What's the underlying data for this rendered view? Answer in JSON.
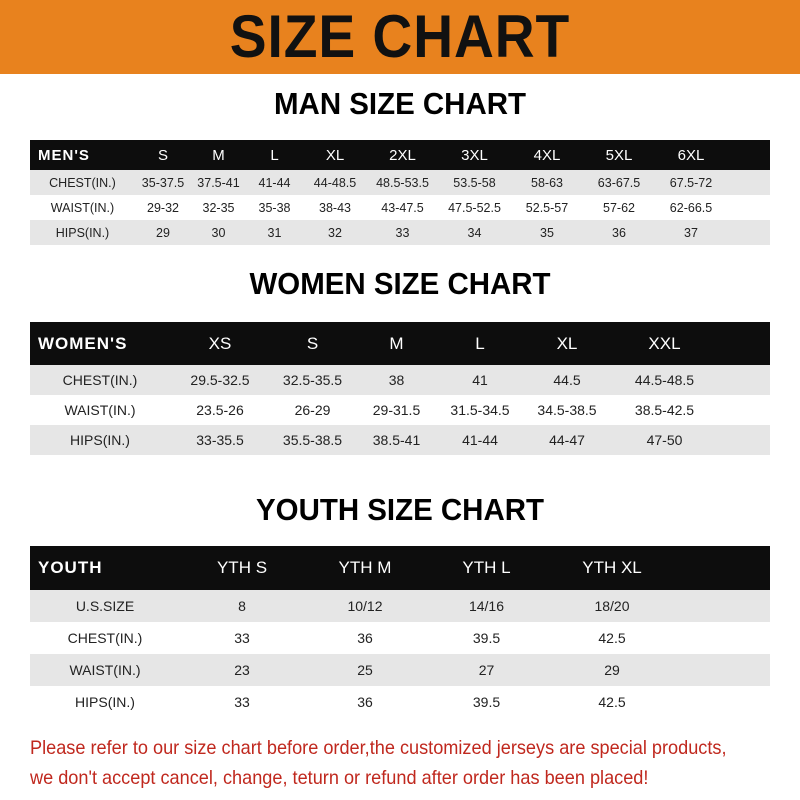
{
  "title": "SIZE CHART",
  "men": {
    "title": "MAN SIZE CHART",
    "header": [
      "MEN'S",
      "S",
      "M",
      "L",
      "XL",
      "2XL",
      "3XL",
      "4XL",
      "5XL",
      "6XL"
    ],
    "rows": [
      [
        "CHEST(IN.)",
        "35-37.5",
        "37.5-41",
        "41-44",
        "44-48.5",
        "48.5-53.5",
        "53.5-58",
        "58-63",
        "63-67.5",
        "67.5-72"
      ],
      [
        "WAIST(IN.)",
        "29-32",
        "32-35",
        "35-38",
        "38-43",
        "43-47.5",
        "47.5-52.5",
        "52.5-57",
        "57-62",
        "62-66.5"
      ],
      [
        "HIPS(IN.)",
        "29",
        "30",
        "31",
        "32",
        "33",
        "34",
        "35",
        "36",
        "37"
      ]
    ]
  },
  "women": {
    "title": "WOMEN SIZE CHART",
    "header": [
      "WOMEN'S",
      "XS",
      "S",
      "M",
      "L",
      "XL",
      "XXL"
    ],
    "rows": [
      [
        "CHEST(IN.)",
        "29.5-32.5",
        "32.5-35.5",
        "38",
        "41",
        "44.5",
        "44.5-48.5"
      ],
      [
        "WAIST(IN.)",
        "23.5-26",
        "26-29",
        "29-31.5",
        "31.5-34.5",
        "34.5-38.5",
        "38.5-42.5"
      ],
      [
        "HIPS(IN.)",
        "33-35.5",
        "35.5-38.5",
        "38.5-41",
        "41-44",
        "44-47",
        "47-50"
      ]
    ]
  },
  "youth": {
    "title": "YOUTH SIZE CHART",
    "header": [
      "YOUTH",
      "YTH S",
      "YTH M",
      "YTH L",
      "YTH XL"
    ],
    "rows": [
      [
        "U.S.SIZE",
        "8",
        "10/12",
        "14/16",
        "18/20"
      ],
      [
        "CHEST(IN.)",
        "33",
        "36",
        "39.5",
        "42.5"
      ],
      [
        "WAIST(IN.)",
        "23",
        "25",
        "27",
        "29"
      ],
      [
        "HIPS(IN.)",
        "33",
        "36",
        "39.5",
        "42.5"
      ]
    ]
  },
  "note": [
    "Please refer to our size chart before order,the customized jerseys are special products,",
    "we don't accept cancel, change, teturn or refund after order has been placed!"
  ],
  "colors": {
    "banner": "#e8821e",
    "header_row": "#0d0d0d",
    "stripe": "#e6e6e6",
    "note": "#c0281e"
  }
}
